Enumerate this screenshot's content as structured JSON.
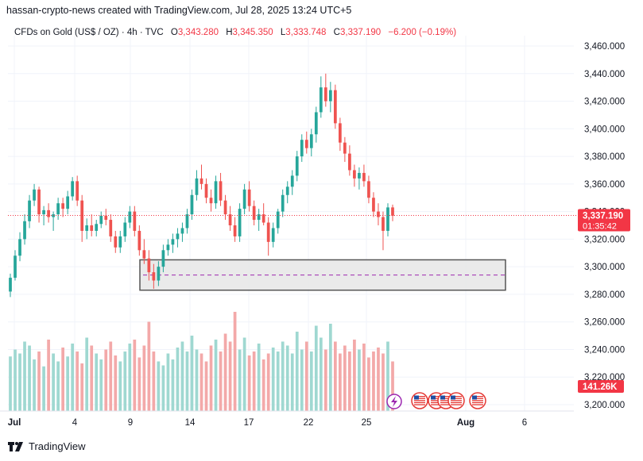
{
  "header": {
    "credit": "hassan-crypto-news created with TradingView.com, Jul 28, 2025 13:24 UTC+5"
  },
  "legend": {
    "symbol": "CFDs on Gold (US$ / OZ) · 4h · TVC",
    "o_label": "O",
    "o_value": "3,343.280",
    "h_label": "H",
    "h_value": "3,345.350",
    "l_label": "L",
    "l_value": "3,333.748",
    "c_label": "C",
    "c_value": "3,337.190",
    "change": "−6.200 (−0.19%)"
  },
  "footer": {
    "brand": "TradingView"
  },
  "colors": {
    "up": "#26a69a",
    "down": "#ef5350",
    "up_vol": "#9fd8d1",
    "down_vol": "#f3a9a9",
    "price_line": "#f23645",
    "zone_fill": "#e6e6e6",
    "zone_border": "#555555",
    "zone_dash": "#9c27b0"
  },
  "chart_data": {
    "type": "candlestick",
    "price_axis": {
      "ticks": [
        "3,460.000",
        "3,440.000",
        "3,420.000",
        "3,400.000",
        "3,380.000",
        "3,360.000",
        "3,340.000",
        "3,320.000",
        "3,300.000",
        "3,280.000",
        "3,260.000",
        "3,240.000",
        "3,220.000",
        "3,200.000"
      ],
      "range": [
        3200,
        3460
      ]
    },
    "time_axis": {
      "ticks": [
        "Jul",
        "4",
        "9",
        "14",
        "17",
        "22",
        "25",
        "Aug",
        "6"
      ]
    },
    "last_price": {
      "value": "3,337.190",
      "countdown": "01:35:42"
    },
    "volume_badge": "141.26K",
    "support_zone": {
      "low": 3283,
      "high": 3305,
      "mid": 3294
    },
    "candles_ohlc": [
      [
        3282,
        3295,
        3278,
        3292
      ],
      [
        3292,
        3312,
        3290,
        3308
      ],
      [
        3308,
        3325,
        3304,
        3320
      ],
      [
        3320,
        3338,
        3316,
        3333
      ],
      [
        3333,
        3352,
        3328,
        3348
      ],
      [
        3348,
        3360,
        3344,
        3356
      ],
      [
        3356,
        3358,
        3332,
        3338
      ],
      [
        3338,
        3344,
        3330,
        3341
      ],
      [
        3341,
        3346,
        3332,
        3336
      ],
      [
        3336,
        3340,
        3326,
        3338
      ],
      [
        3338,
        3350,
        3334,
        3346
      ],
      [
        3346,
        3350,
        3336,
        3342
      ],
      [
        3342,
        3355,
        3338,
        3351
      ],
      [
        3351,
        3365,
        3348,
        3362
      ],
      [
        3362,
        3366,
        3344,
        3348
      ],
      [
        3348,
        3352,
        3318,
        3326
      ],
      [
        3326,
        3335,
        3320,
        3330
      ],
      [
        3330,
        3338,
        3322,
        3326
      ],
      [
        3326,
        3334,
        3322,
        3331
      ],
      [
        3331,
        3340,
        3328,
        3337
      ],
      [
        3337,
        3342,
        3330,
        3334
      ],
      [
        3334,
        3338,
        3318,
        3322
      ],
      [
        3322,
        3326,
        3310,
        3314
      ],
      [
        3314,
        3326,
        3310,
        3322
      ],
      [
        3322,
        3336,
        3318,
        3332
      ],
      [
        3332,
        3344,
        3328,
        3340
      ],
      [
        3340,
        3344,
        3322,
        3326
      ],
      [
        3326,
        3330,
        3308,
        3312
      ],
      [
        3312,
        3320,
        3302,
        3306
      ],
      [
        3306,
        3312,
        3290,
        3296
      ],
      [
        3296,
        3302,
        3284,
        3290
      ],
      [
        3290,
        3304,
        3286,
        3300
      ],
      [
        3300,
        3316,
        3296,
        3312
      ],
      [
        3312,
        3320,
        3308,
        3316
      ],
      [
        3316,
        3324,
        3310,
        3320
      ],
      [
        3320,
        3328,
        3314,
        3324
      ],
      [
        3324,
        3332,
        3318,
        3328
      ],
      [
        3328,
        3342,
        3324,
        3338
      ],
      [
        3338,
        3356,
        3334,
        3352
      ],
      [
        3352,
        3370,
        3348,
        3364
      ],
      [
        3364,
        3374,
        3356,
        3360
      ],
      [
        3360,
        3364,
        3346,
        3350
      ],
      [
        3350,
        3356,
        3340,
        3346
      ],
      [
        3346,
        3366,
        3342,
        3362
      ],
      [
        3362,
        3368,
        3344,
        3348
      ],
      [
        3348,
        3352,
        3334,
        3338
      ],
      [
        3338,
        3344,
        3326,
        3330
      ],
      [
        3330,
        3336,
        3318,
        3322
      ],
      [
        3322,
        3346,
        3318,
        3342
      ],
      [
        3342,
        3360,
        3338,
        3356
      ],
      [
        3356,
        3362,
        3340,
        3344
      ],
      [
        3344,
        3348,
        3330,
        3334
      ],
      [
        3334,
        3342,
        3326,
        3338
      ],
      [
        3338,
        3346,
        3330,
        3332
      ],
      [
        3332,
        3336,
        3308,
        3318
      ],
      [
        3318,
        3332,
        3314,
        3328
      ],
      [
        3328,
        3342,
        3324,
        3340
      ],
      [
        3340,
        3356,
        3336,
        3352
      ],
      [
        3352,
        3362,
        3346,
        3358
      ],
      [
        3358,
        3370,
        3352,
        3366
      ],
      [
        3366,
        3384,
        3362,
        3380
      ],
      [
        3380,
        3396,
        3376,
        3392
      ],
      [
        3392,
        3398,
        3382,
        3386
      ],
      [
        3386,
        3400,
        3380,
        3396
      ],
      [
        3396,
        3416,
        3390,
        3412
      ],
      [
        3412,
        3438,
        3408,
        3430
      ],
      [
        3430,
        3440,
        3416,
        3420
      ],
      [
        3420,
        3434,
        3412,
        3428
      ],
      [
        3428,
        3432,
        3400,
        3404
      ],
      [
        3404,
        3408,
        3384,
        3390
      ],
      [
        3390,
        3394,
        3376,
        3382
      ],
      [
        3382,
        3388,
        3366,
        3370
      ],
      [
        3370,
        3374,
        3358,
        3364
      ],
      [
        3364,
        3372,
        3356,
        3368
      ],
      [
        3368,
        3374,
        3358,
        3362
      ],
      [
        3362,
        3366,
        3346,
        3350
      ],
      [
        3350,
        3354,
        3336,
        3340
      ],
      [
        3340,
        3346,
        3330,
        3336
      ],
      [
        3336,
        3340,
        3312,
        3326
      ],
      [
        3326,
        3346,
        3322,
        3343
      ],
      [
        3343,
        3345,
        3333,
        3337
      ]
    ],
    "volumes": [
      0.55,
      0.62,
      0.58,
      0.7,
      0.66,
      0.52,
      0.6,
      0.45,
      0.72,
      0.58,
      0.5,
      0.64,
      0.55,
      0.68,
      0.6,
      0.48,
      0.74,
      0.66,
      0.58,
      0.52,
      0.62,
      0.7,
      0.56,
      0.5,
      0.6,
      0.68,
      0.72,
      0.54,
      0.66,
      0.9,
      0.6,
      0.5,
      0.46,
      0.58,
      0.52,
      0.64,
      0.7,
      0.6,
      0.76,
      0.62,
      0.58,
      0.5,
      0.66,
      0.72,
      0.6,
      0.78,
      0.7,
      1.0,
      0.62,
      0.74,
      0.56,
      0.6,
      0.68,
      0.52,
      0.58,
      0.64,
      0.6,
      0.7,
      0.66,
      0.58,
      0.8,
      0.62,
      0.7,
      0.6,
      0.86,
      0.74,
      0.62,
      0.88,
      0.7,
      0.58,
      0.66,
      0.6,
      0.72,
      0.62,
      0.68,
      0.54,
      0.6,
      0.64,
      0.58,
      0.7,
      0.5
    ]
  }
}
